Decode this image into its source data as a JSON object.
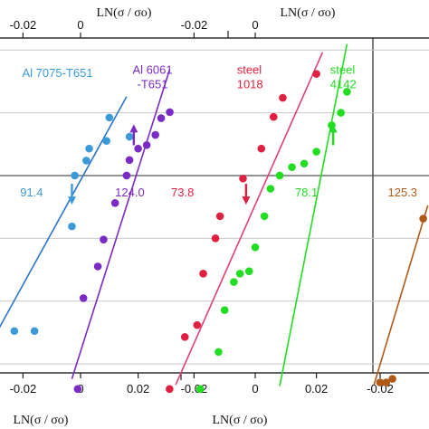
{
  "chart_data": {
    "type": "scatter",
    "axis_title": "LN(σ / σo)",
    "panels": [
      {
        "x_range": [
          -0.03,
          0.03
        ],
        "bottom_ticks": [
          -0.02,
          0,
          0.02
        ],
        "bottom_tick_labels": [
          "-0.02",
          "0",
          "0.02"
        ],
        "top_ticks": [
          -0.02,
          0
        ],
        "top_tick_labels": [
          "-0.02",
          "0"
        ]
      },
      {
        "x_range": [
          -0.03,
          0.03
        ],
        "bottom_ticks": [
          -0.02,
          0,
          0.02
        ],
        "bottom_tick_labels": [
          "-0.02",
          "0",
          "0.02"
        ],
        "top_ticks": [
          -0.02,
          0
        ],
        "top_tick_labels": [
          "-0.02",
          "0"
        ]
      },
      {
        "x_range": [
          -0.03,
          0.03
        ],
        "bottom_ticks": [
          -0.02
        ],
        "bottom_tick_labels": [
          "-0.02"
        ],
        "top_ticks": [],
        "top_tick_labels": []
      }
    ],
    "y_range": [
      -3.3,
      2.3
    ],
    "hlines": [
      2.1,
      1.05,
      0,
      -1.05,
      -2.1,
      -3.15
    ],
    "series": [
      {
        "name": "Al 7075-T651",
        "panel": 0,
        "color": "#3c9ad8",
        "label_lines": [
          "Al 7075-T651"
        ],
        "label_anchor": [
          -0.008,
          1.65
        ],
        "label_align": "middle",
        "value": "91.4",
        "value_at": [
          -0.021,
          -0.35
        ],
        "arrow": "down",
        "arrow_at": [
          -0.003,
          -0.35
        ],
        "fit_color": "#2b74c8",
        "fit": [
          [
            -0.03,
            -2.7
          ],
          [
            0.016,
            1.32
          ]
        ],
        "points": [
          [
            -0.03,
            -2.85
          ],
          [
            -0.023,
            -2.6
          ],
          [
            -0.016,
            -2.6
          ],
          [
            -0.003,
            -0.85
          ],
          [
            -0.002,
            0
          ],
          [
            0.002,
            0.25
          ],
          [
            0.003,
            0.45
          ],
          [
            0.009,
            0.58
          ],
          [
            0.01,
            0.97
          ],
          [
            0.017,
            0.65
          ]
        ]
      },
      {
        "name": "Al 6061-T651",
        "panel": 0,
        "color": "#7a2bc4",
        "label_lines": [
          "Al 6061",
          "-T651"
        ],
        "label_anchor": [
          0.025,
          1.7
        ],
        "label_align": "middle",
        "value": "124.0",
        "value_at": [
          0.012,
          -0.35
        ],
        "arrow": "up",
        "arrow_at": [
          0.0185,
          0.72
        ],
        "fit_color": "#7a2bc4",
        "fit": [
          [
            -0.003,
            -3.4
          ],
          [
            0.031,
            1.78
          ]
        ],
        "points": [
          [
            -0.001,
            -3.57
          ],
          [
            0.001,
            -2.05
          ],
          [
            0.006,
            -1.52
          ],
          [
            0.008,
            -1.07
          ],
          [
            0.012,
            -0.46
          ],
          [
            0.016,
            0.0
          ],
          [
            0.017,
            0.26
          ],
          [
            0.02,
            0.45
          ],
          [
            0.023,
            0.51
          ],
          [
            0.026,
            0.68
          ],
          [
            0.028,
            0.96
          ],
          [
            0.031,
            1.06
          ]
        ]
      },
      {
        "name": "steel 1018",
        "panel": 1,
        "color": "#e02040",
        "label_lines": [
          "steel",
          "1018"
        ],
        "label_anchor": [
          -0.006,
          1.7
        ],
        "label_align": "start",
        "value": "73.8",
        "value_at": [
          -0.0275,
          -0.35
        ],
        "arrow": "down",
        "arrow_at": [
          -0.003,
          -0.35
        ],
        "fit_color": "#e0407a",
        "fit": [
          [
            -0.026,
            -3.5
          ],
          [
            0.022,
            2.06
          ]
        ],
        "points": [
          [
            -0.028,
            -3.57
          ],
          [
            -0.023,
            -2.7
          ],
          [
            -0.019,
            -2.5
          ],
          [
            -0.017,
            -1.64
          ],
          [
            -0.013,
            -1.05
          ],
          [
            -0.0115,
            -0.68
          ],
          [
            -0.004,
            -0.05
          ],
          [
            0.002,
            0.45
          ],
          [
            0.006,
            0.98
          ],
          [
            0.009,
            1.3
          ],
          [
            0.02,
            1.7
          ]
        ]
      },
      {
        "name": "steel 4142",
        "panel": 1,
        "color": "#22dd22",
        "label_lines": [
          "steel",
          "4142"
        ],
        "label_anchor": [
          0.0245,
          1.7
        ],
        "label_align": "start",
        "value": "78.1",
        "value_at": [
          0.013,
          -0.35
        ],
        "arrow": "up",
        "arrow_at": [
          0.0255,
          0.72
        ],
        "fit_color": "#22dd22",
        "fit": [
          [
            0.008,
            -3.52
          ],
          [
            0.03,
            2.2
          ]
        ],
        "points": [
          [
            -0.018,
            -3.57
          ],
          [
            -0.012,
            -2.95
          ],
          [
            -0.01,
            -2.25
          ],
          [
            -0.007,
            -1.78
          ],
          [
            -0.005,
            -1.64
          ],
          [
            -0.002,
            -1.6
          ],
          [
            0.0,
            -1.2
          ],
          [
            0.003,
            -0.68
          ],
          [
            0.005,
            -0.22
          ],
          [
            0.008,
            0.0
          ],
          [
            0.012,
            0.14
          ],
          [
            0.016,
            0.2
          ],
          [
            0.02,
            0.4
          ],
          [
            0.025,
            0.84
          ],
          [
            0.028,
            1.05
          ],
          [
            0.03,
            1.4
          ]
        ]
      },
      {
        "name": "",
        "panel": 2,
        "color": "#b05a18",
        "label_lines": [],
        "label_anchor": [
          0.0,
          0.0
        ],
        "label_align": "start",
        "value": "125.3",
        "value_at": [
          -0.0175,
          -0.35
        ],
        "arrow": "",
        "arrow_at": [
          0.0,
          0.0
        ],
        "fit_color": "#b05a18",
        "fit": [
          [
            -0.022,
            -3.5
          ],
          [
            -0.0045,
            -0.5
          ]
        ],
        "points": [
          [
            -0.02,
            -3.46
          ],
          [
            -0.018,
            -3.46
          ],
          [
            -0.016,
            -3.4
          ],
          [
            -0.006,
            -0.72
          ]
        ]
      }
    ]
  }
}
